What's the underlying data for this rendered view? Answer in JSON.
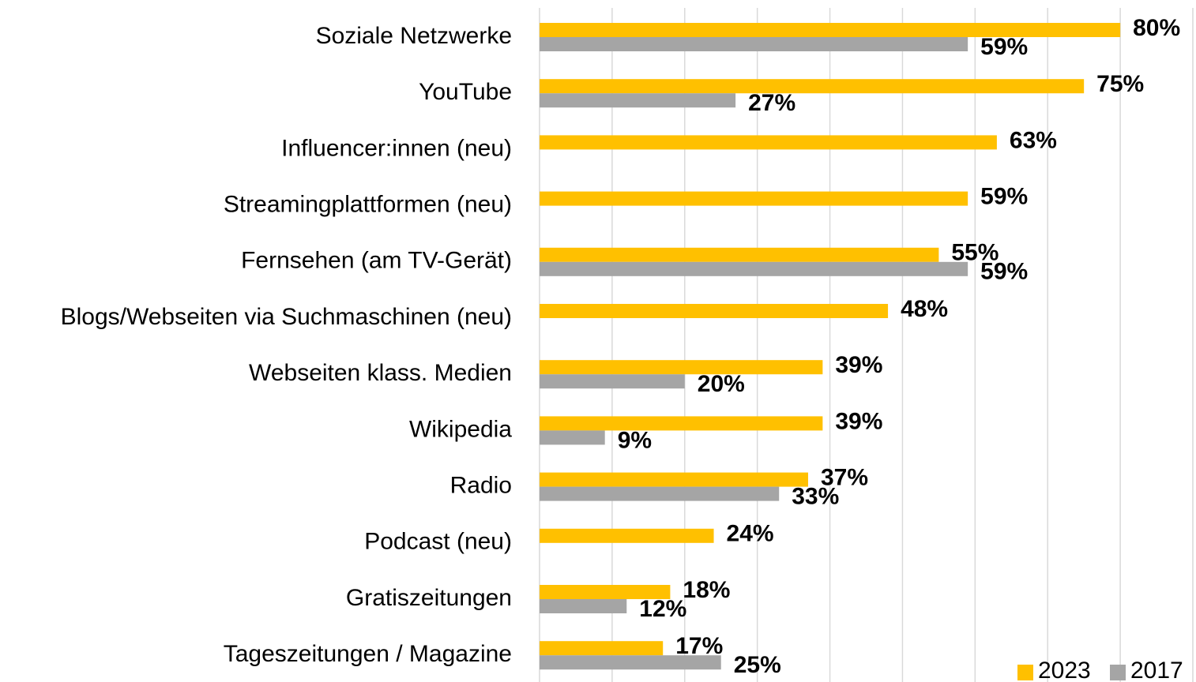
{
  "chart_data": {
    "type": "bar",
    "orientation": "horizontal",
    "categories": [
      "Soziale Netzwerke",
      "YouTube",
      "Influencer:innen (neu)",
      "Streamingplattformen (neu)",
      "Fernsehen (am TV-Gerät)",
      "Blogs/Webseiten via Suchmaschinen (neu)",
      "Webseiten klass. Medien",
      "Wikipedia",
      "Radio",
      "Podcast (neu)",
      "Gratiszeitungen",
      "Tageszeitungen / Magazine"
    ],
    "series": [
      {
        "name": "2023",
        "color": "#ffc000",
        "values": [
          80,
          75,
          63,
          59,
          55,
          48,
          39,
          39,
          37,
          24,
          18,
          17
        ],
        "value_labels": [
          "80%",
          "75%",
          "63%",
          "59%",
          "55%",
          "48%",
          "39%",
          "39%",
          "37%",
          "24%",
          "18%",
          "17%"
        ]
      },
      {
        "name": "2017",
        "color": "#a5a5a5",
        "values": [
          59,
          27,
          null,
          null,
          59,
          null,
          20,
          9,
          33,
          null,
          12,
          25
        ],
        "value_labels": [
          "59%",
          "27%",
          null,
          null,
          "59%",
          null,
          "20%",
          "9%",
          "33%",
          null,
          "12%",
          "25%"
        ]
      }
    ],
    "xlim": [
      0,
      90
    ],
    "xticks": [
      0,
      10,
      20,
      30,
      40,
      50,
      60,
      70,
      80,
      90
    ],
    "grid": true,
    "legend": "bottom-right"
  }
}
